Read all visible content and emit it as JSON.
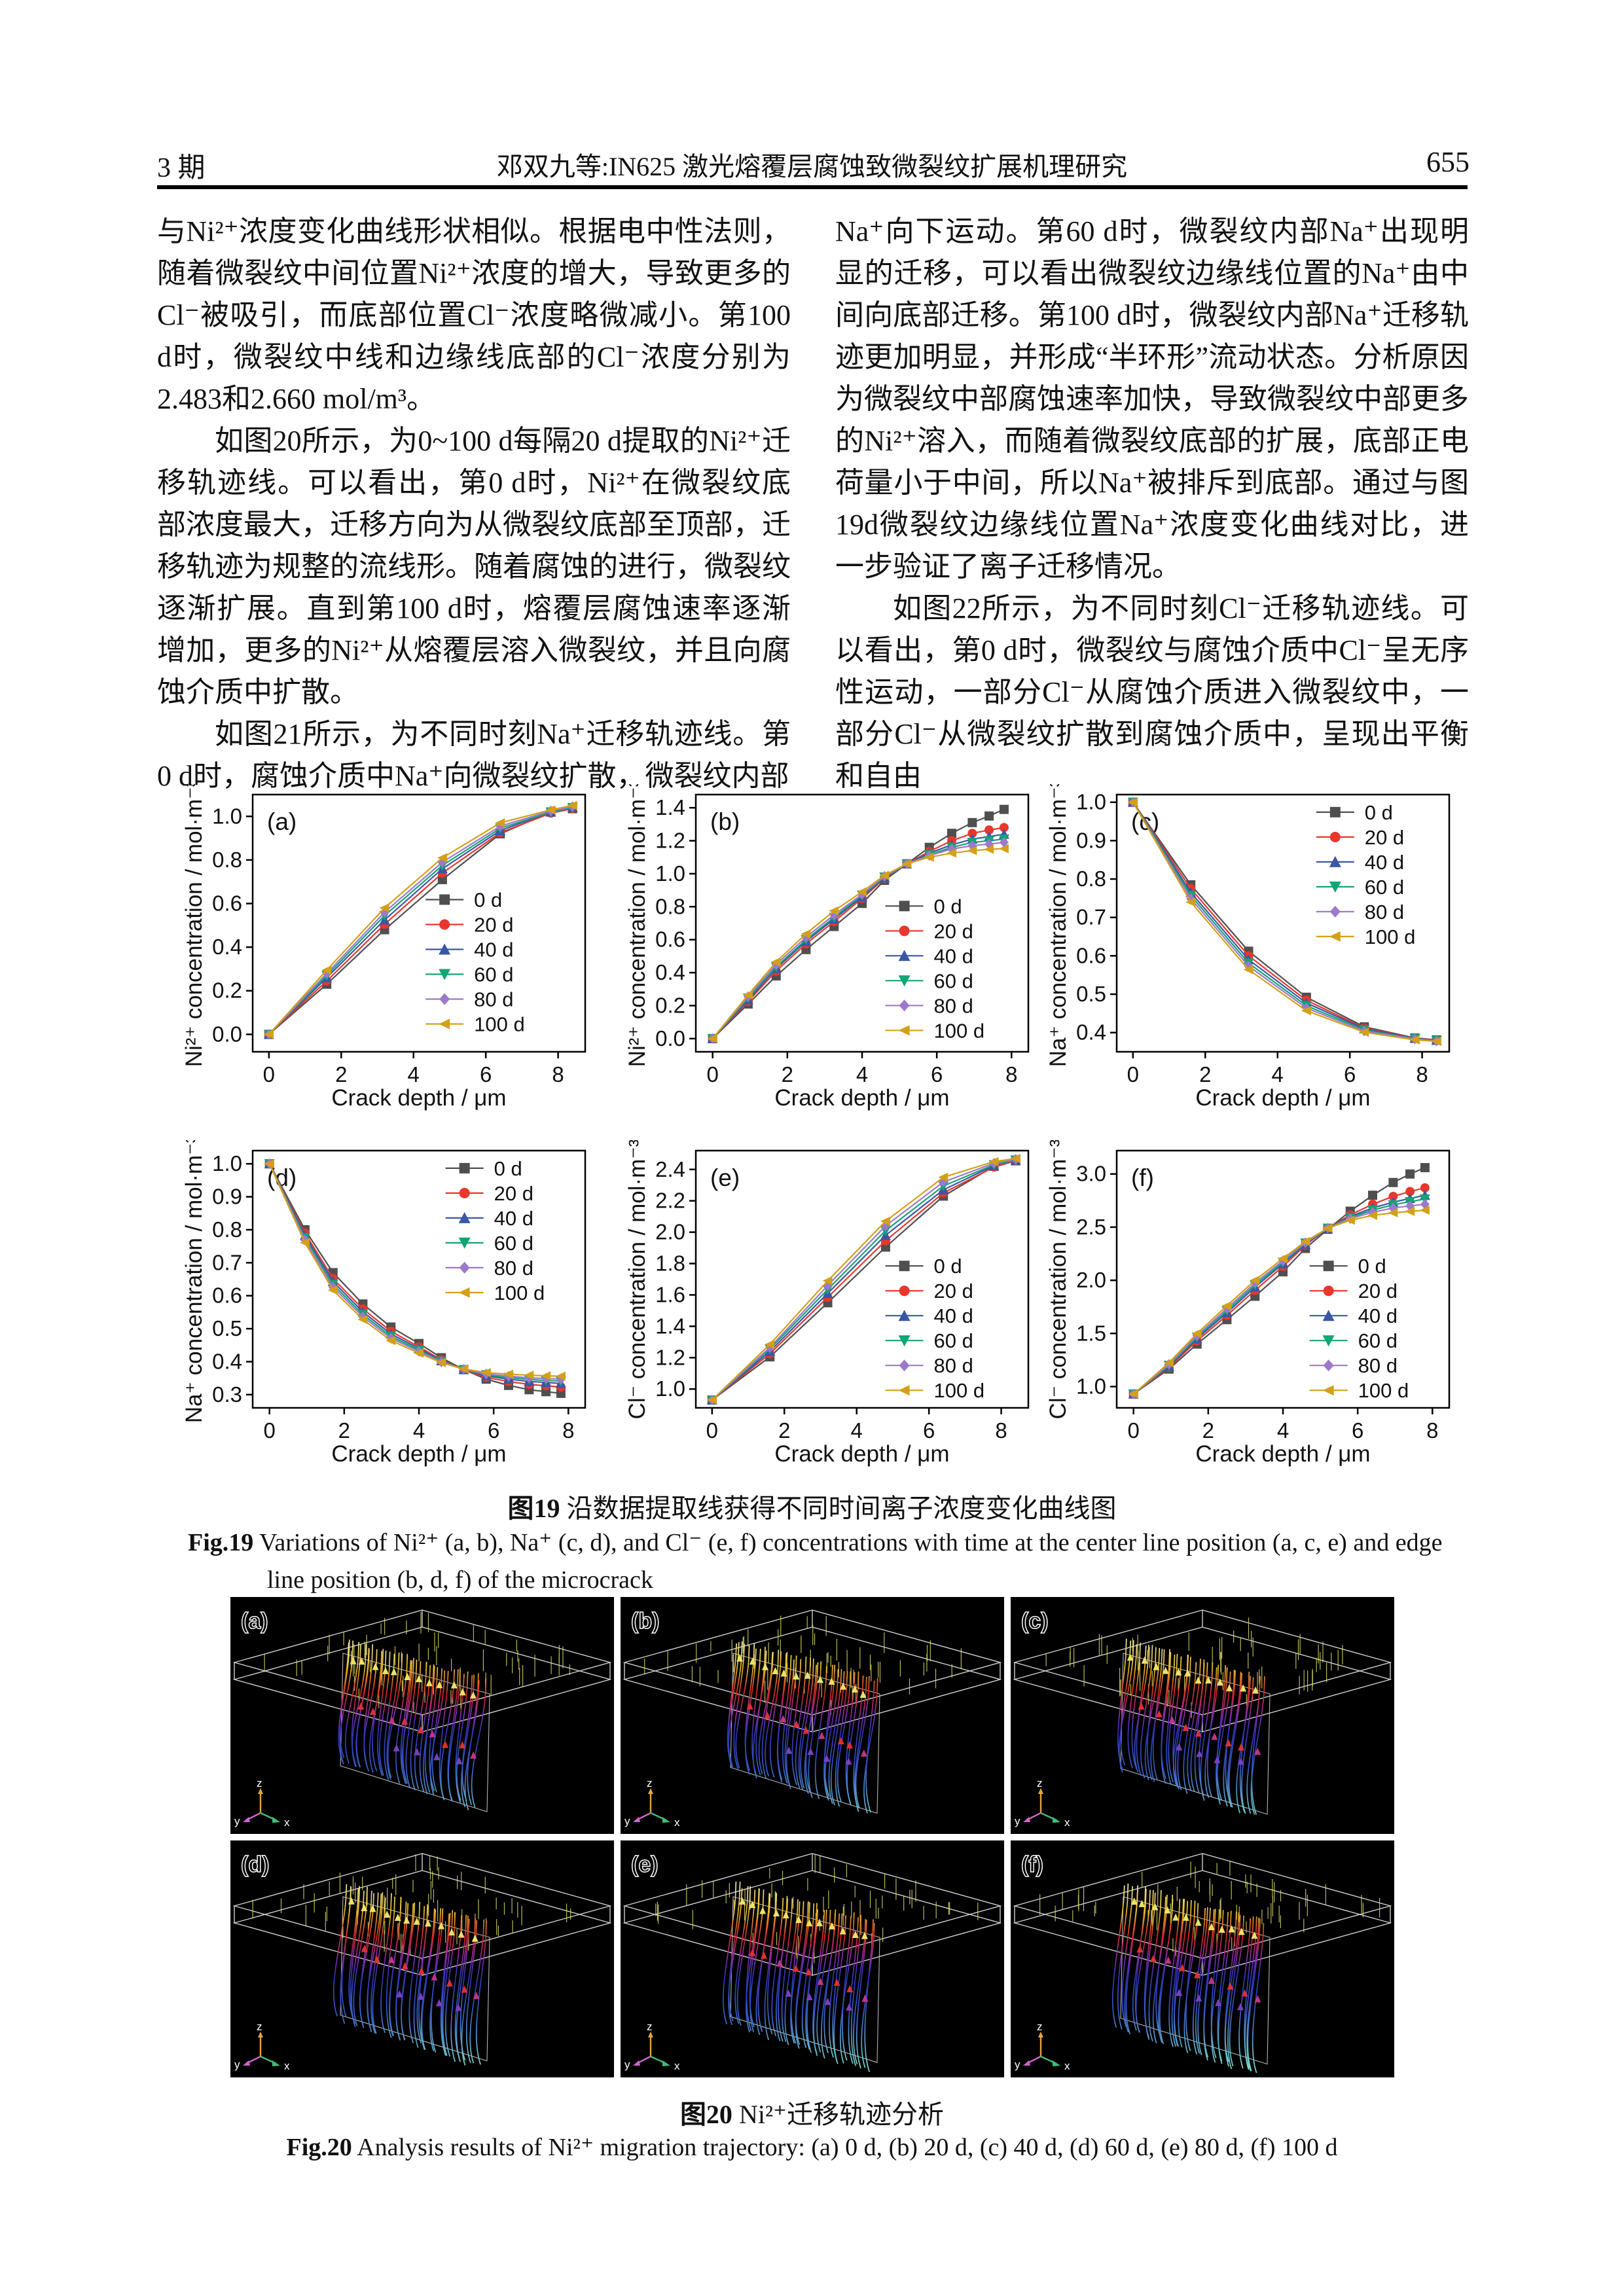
{
  "page": {
    "header": {
      "issue": "3 期",
      "title": "邓双九等:IN625 激光熔覆层腐蚀致微裂纹扩展机理研究",
      "page_number": "655"
    },
    "body": {
      "left_column": [
        {
          "indent": false,
          "text": "与Ni²⁺浓度变化曲线形状相似。根据电中性法则，随着微裂纹中间位置Ni²⁺浓度的增大，导致更多的Cl⁻被吸引，而底部位置Cl⁻浓度略微减小。第100 d时，微裂纹中线和边缘线底部的Cl⁻浓度分别为2.483和2.660 mol/m³。"
        },
        {
          "indent": true,
          "text": "如图20所示，为0~100 d每隔20 d提取的Ni²⁺迁移轨迹线。可以看出，第0 d时，Ni²⁺在微裂纹底部浓度最大，迁移方向为从微裂纹底部至顶部，迁移轨迹为规整的流线形。随着腐蚀的进行，微裂纹逐渐扩展。直到第100 d时，熔覆层腐蚀速率逐渐增加，更多的Ni²⁺从熔覆层溶入微裂纹，并且向腐蚀介质中扩散。"
        },
        {
          "indent": true,
          "text": "如图21所示，为不同时刻Na⁺迁移轨迹线。第0 d时，腐蚀介质中Na⁺向微裂纹扩散，微裂纹内部"
        }
      ],
      "right_column": [
        {
          "indent": false,
          "text": "Na⁺向下运动。第60 d时，微裂纹内部Na⁺出现明显的迁移，可以看出微裂纹边缘线位置的Na⁺由中间向底部迁移。第100 d时，微裂纹内部Na⁺迁移轨迹更加明显，并形成“半环形”流动状态。分析原因为微裂纹中部腐蚀速率加快，导致微裂纹中部更多的Ni²⁺溶入，而随着微裂纹底部的扩展，底部正电荷量小于中间，所以Na⁺被排斥到底部。通过与图19d微裂纹边缘线位置Na⁺浓度变化曲线对比，进一步验证了离子迁移情况。"
        },
        {
          "indent": true,
          "text": "如图22所示，为不同时刻Cl⁻迁移轨迹线。可以看出，第0 d时，微裂纹与腐蚀介质中Cl⁻呈无序性运动，一部分Cl⁻从腐蚀介质进入微裂纹中，一部分Cl⁻从微裂纹扩散到腐蚀介质中，呈现出平衡和自由"
        }
      ]
    },
    "fig19": {
      "caption_zh_prefix": "图19",
      "caption_zh_text": " 沿数据提取线获得不同时间离子浓度变化曲线图",
      "caption_en_prefix": "Fig.19",
      "caption_en_line1": " Variations of Ni²⁺ (a, b), Na⁺ (c, d), and Cl⁻ (e, f) concentrations with time at the center line position (a, c, e) and edge",
      "caption_en_line2": "line position (b, d, f) of the microcrack"
    },
    "fig20": {
      "panel_labels": [
        "(a)",
        "(b)",
        "(c)",
        "(d)",
        "(e)",
        "(f)"
      ],
      "triad_labels": {
        "x": "x",
        "y": "y",
        "z": "z"
      },
      "palette": {
        "background": "#000000",
        "wireframe": "#cfcfcf",
        "plane_ticks": "#d9d964",
        "stream_bottom": "#7fe7d8",
        "stream_blue": "#3a5fd0",
        "stream_purple": "#8c2fb3",
        "stream_red": "#e02828",
        "stream_yellow": "#f5c52e",
        "axis_x": "#44bb77",
        "axis_y": "#cc66cc",
        "axis_z": "#e8a33d"
      },
      "caption_zh_prefix": "图20",
      "caption_zh_text": " Ni²⁺迁移轨迹分析",
      "caption_en_prefix": "Fig.20",
      "caption_en_text": " Analysis results of Ni²⁺ migration trajectory: (a) 0 d, (b) 20 d, (c) 40 d, (d) 60 d, (e) 80 d, (f) 100 d"
    }
  },
  "chart_data": [
    {
      "type": "line",
      "panel": "(a)",
      "xlabel": "Crack depth / μm",
      "ylabel": "Ni²⁺ concentration / mol·m⁻³",
      "xlim": [
        -0.45,
        8.75
      ],
      "ylim": [
        -0.08,
        1.1
      ],
      "xticks": [
        0,
        2,
        4,
        6,
        8
      ],
      "yticks": [
        0.0,
        0.2,
        0.4,
        0.6,
        0.8,
        1.0
      ],
      "ydec": 1,
      "grid": false,
      "legend_pos": {
        "fx": 0.52,
        "fy": 0.36
      },
      "x": [
        0,
        1.6,
        3.2,
        4.8,
        6.4,
        7.8,
        8.4
      ],
      "series": [
        {
          "name": "0 d",
          "color": "#4f4f4f",
          "marker": "square",
          "values": [
            0,
            0.23,
            0.48,
            0.71,
            0.92,
            1.02,
            1.035
          ]
        },
        {
          "name": "20 d",
          "color": "#e8372c",
          "marker": "circle",
          "values": [
            0,
            0.245,
            0.505,
            0.74,
            0.925,
            1.015,
            1.035
          ]
        },
        {
          "name": "40 d",
          "color": "#3a57a7",
          "marker": "triangle-up",
          "values": [
            0,
            0.26,
            0.525,
            0.76,
            0.935,
            1.02,
            1.04
          ]
        },
        {
          "name": "60 d",
          "color": "#15a375",
          "marker": "triangle-down",
          "values": [
            0,
            0.27,
            0.545,
            0.775,
            0.945,
            1.02,
            1.04
          ]
        },
        {
          "name": "80 d",
          "color": "#9d79cb",
          "marker": "diamond",
          "values": [
            0,
            0.28,
            0.56,
            0.79,
            0.955,
            1.025,
            1.045
          ]
        },
        {
          "name": "100 d",
          "color": "#d4a017",
          "marker": "triangle-left",
          "values": [
            0,
            0.295,
            0.58,
            0.81,
            0.97,
            1.03,
            1.05
          ]
        }
      ]
    },
    {
      "type": "line",
      "panel": "(b)",
      "xlabel": "Crack depth / μm",
      "ylabel": "Ni²⁺ concentration / mol·m⁻³",
      "xlim": [
        -0.45,
        8.45
      ],
      "ylim": [
        -0.08,
        1.48
      ],
      "xticks": [
        0,
        2,
        4,
        6,
        8
      ],
      "yticks": [
        0.0,
        0.2,
        0.4,
        0.6,
        0.8,
        1.0,
        1.2,
        1.4
      ],
      "ydec": 1,
      "grid": false,
      "legend_pos": {
        "fx": 0.57,
        "fy": 0.385
      },
      "x": [
        0,
        0.95,
        1.7,
        2.5,
        3.25,
        4.0,
        4.6,
        5.2,
        5.8,
        6.4,
        6.95,
        7.4,
        7.8
      ],
      "series": [
        {
          "name": "0 d",
          "color": "#4f4f4f",
          "marker": "square",
          "values": [
            0,
            0.21,
            0.38,
            0.54,
            0.68,
            0.82,
            0.96,
            1.06,
            1.16,
            1.245,
            1.31,
            1.35,
            1.39
          ]
        },
        {
          "name": "20 d",
          "color": "#e8372c",
          "marker": "circle",
          "values": [
            0,
            0.225,
            0.41,
            0.575,
            0.71,
            0.85,
            0.97,
            1.06,
            1.135,
            1.2,
            1.245,
            1.265,
            1.28
          ]
        },
        {
          "name": "40 d",
          "color": "#3a57a7",
          "marker": "triangle-up",
          "values": [
            0,
            0.235,
            0.425,
            0.59,
            0.725,
            0.86,
            0.975,
            1.06,
            1.125,
            1.175,
            1.21,
            1.225,
            1.24
          ]
        },
        {
          "name": "60 d",
          "color": "#15a375",
          "marker": "triangle-down",
          "values": [
            0,
            0.245,
            0.435,
            0.6,
            0.735,
            0.87,
            0.98,
            1.06,
            1.115,
            1.16,
            1.19,
            1.2,
            1.21
          ]
        },
        {
          "name": "80 d",
          "color": "#9d79cb",
          "marker": "diamond",
          "values": [
            0,
            0.255,
            0.45,
            0.615,
            0.75,
            0.875,
            0.985,
            1.06,
            1.11,
            1.15,
            1.17,
            1.18,
            1.19
          ]
        },
        {
          "name": "100 d",
          "color": "#d4a017",
          "marker": "triangle-left",
          "values": [
            0,
            0.265,
            0.465,
            0.635,
            0.775,
            0.89,
            0.99,
            1.06,
            1.1,
            1.125,
            1.14,
            1.148,
            1.152
          ]
        }
      ]
    },
    {
      "type": "line",
      "panel": "(c)",
      "xlabel": "Crack depth / μm",
      "ylabel": "Na⁺ concentration / mol·m⁻³",
      "xlim": [
        -0.45,
        8.75
      ],
      "ylim": [
        0.35,
        1.02
      ],
      "xticks": [
        0,
        2,
        4,
        6,
        8
      ],
      "yticks": [
        0.4,
        0.5,
        0.6,
        0.7,
        0.8,
        0.9,
        1.0
      ],
      "ydec": 1,
      "grid": false,
      "legend_pos": {
        "fx": 0.6,
        "fy": 0.02
      },
      "x": [
        0,
        1.6,
        3.2,
        4.8,
        6.4,
        7.8,
        8.4
      ],
      "series": [
        {
          "name": "0 d",
          "color": "#4f4f4f",
          "marker": "square",
          "values": [
            1.0,
            0.785,
            0.612,
            0.492,
            0.415,
            0.386,
            0.381
          ]
        },
        {
          "name": "20 d",
          "color": "#e8372c",
          "marker": "circle",
          "values": [
            1.0,
            0.775,
            0.6,
            0.484,
            0.412,
            0.386,
            0.381
          ]
        },
        {
          "name": "40 d",
          "color": "#3a57a7",
          "marker": "triangle-up",
          "values": [
            1.0,
            0.765,
            0.59,
            0.477,
            0.41,
            0.385,
            0.38
          ]
        },
        {
          "name": "60 d",
          "color": "#15a375",
          "marker": "triangle-down",
          "values": [
            1.0,
            0.757,
            0.581,
            0.47,
            0.407,
            0.384,
            0.379
          ]
        },
        {
          "name": "80 d",
          "color": "#9d79cb",
          "marker": "diamond",
          "values": [
            1.0,
            0.749,
            0.573,
            0.464,
            0.404,
            0.383,
            0.378
          ]
        },
        {
          "name": "100 d",
          "color": "#d4a017",
          "marker": "triangle-left",
          "values": [
            1.0,
            0.74,
            0.564,
            0.457,
            0.401,
            0.381,
            0.377
          ]
        }
      ]
    },
    {
      "type": "line",
      "panel": "(d)",
      "xlabel": "Crack depth / μm",
      "ylabel": "Na⁺ concentration / mol·m⁻³",
      "xlim": [
        -0.45,
        8.45
      ],
      "ylim": [
        0.26,
        1.04
      ],
      "xticks": [
        0,
        2,
        4,
        6,
        8
      ],
      "yticks": [
        0.3,
        0.4,
        0.5,
        0.6,
        0.7,
        0.8,
        0.9,
        1.0
      ],
      "ydec": 1,
      "grid": false,
      "legend_pos": {
        "fx": 0.58,
        "fy": 0.02
      },
      "x": [
        0,
        0.95,
        1.7,
        2.5,
        3.25,
        4.0,
        4.6,
        5.2,
        5.8,
        6.4,
        6.95,
        7.4,
        7.8
      ],
      "series": [
        {
          "name": "0 d",
          "color": "#4f4f4f",
          "marker": "square",
          "values": [
            1.0,
            0.8,
            0.67,
            0.575,
            0.505,
            0.455,
            0.412,
            0.376,
            0.347,
            0.328,
            0.315,
            0.309,
            0.304
          ]
        },
        {
          "name": "20 d",
          "color": "#e8372c",
          "marker": "circle",
          "values": [
            1.0,
            0.79,
            0.652,
            0.56,
            0.492,
            0.445,
            0.406,
            0.375,
            0.352,
            0.34,
            0.331,
            0.327,
            0.323
          ]
        },
        {
          "name": "40 d",
          "color": "#3a57a7",
          "marker": "triangle-up",
          "values": [
            1.0,
            0.783,
            0.643,
            0.551,
            0.484,
            0.44,
            0.403,
            0.376,
            0.357,
            0.347,
            0.34,
            0.337,
            0.334
          ]
        },
        {
          "name": "60 d",
          "color": "#15a375",
          "marker": "triangle-down",
          "values": [
            1.0,
            0.776,
            0.634,
            0.543,
            0.477,
            0.435,
            0.401,
            0.376,
            0.36,
            0.352,
            0.346,
            0.343,
            0.341
          ]
        },
        {
          "name": "80 d",
          "color": "#9d79cb",
          "marker": "diamond",
          "values": [
            1.0,
            0.769,
            0.626,
            0.536,
            0.471,
            0.431,
            0.399,
            0.377,
            0.363,
            0.356,
            0.351,
            0.349,
            0.347
          ]
        },
        {
          "name": "100 d",
          "color": "#d4a017",
          "marker": "triangle-left",
          "values": [
            1.0,
            0.761,
            0.617,
            0.528,
            0.464,
            0.426,
            0.397,
            0.378,
            0.367,
            0.362,
            0.359,
            0.357,
            0.356
          ]
        }
      ]
    },
    {
      "type": "line",
      "panel": "(e)",
      "xlabel": "Crack depth / μm",
      "ylabel": "Cl⁻ concentration / mol·m⁻³",
      "xlim": [
        -0.45,
        8.75
      ],
      "ylim": [
        0.88,
        2.52
      ],
      "xticks": [
        0,
        2,
        4,
        6,
        8
      ],
      "yticks": [
        1.0,
        1.2,
        1.4,
        1.6,
        1.8,
        2.0,
        2.2,
        2.4
      ],
      "ydec": 1,
      "grid": false,
      "legend_pos": {
        "fx": 0.57,
        "fy": 0.4
      },
      "x": [
        0,
        1.6,
        3.2,
        4.8,
        6.4,
        7.8,
        8.4
      ],
      "series": [
        {
          "name": "0 d",
          "color": "#4f4f4f",
          "marker": "square",
          "values": [
            0.93,
            1.205,
            1.55,
            1.905,
            2.23,
            2.42,
            2.455
          ]
        },
        {
          "name": "20 d",
          "color": "#e8372c",
          "marker": "circle",
          "values": [
            0.93,
            1.225,
            1.585,
            1.945,
            2.25,
            2.415,
            2.455
          ]
        },
        {
          "name": "40 d",
          "color": "#3a57a7",
          "marker": "triangle-up",
          "values": [
            0.93,
            1.24,
            1.61,
            1.98,
            2.27,
            2.425,
            2.46
          ]
        },
        {
          "name": "60 d",
          "color": "#15a375",
          "marker": "triangle-down",
          "values": [
            0.93,
            1.255,
            1.635,
            2.01,
            2.295,
            2.43,
            2.46
          ]
        },
        {
          "name": "80 d",
          "color": "#9d79cb",
          "marker": "diamond",
          "values": [
            0.93,
            1.265,
            1.66,
            2.04,
            2.32,
            2.44,
            2.465
          ]
        },
        {
          "name": "100 d",
          "color": "#d4a017",
          "marker": "triangle-left",
          "values": [
            0.93,
            1.285,
            1.69,
            2.07,
            2.35,
            2.45,
            2.47
          ]
        }
      ]
    },
    {
      "type": "line",
      "panel": "(f)",
      "xlabel": "Crack depth / μm",
      "ylabel": "Cl⁻ concentration / mol·m⁻³",
      "xlim": [
        -0.45,
        8.45
      ],
      "ylim": [
        0.8,
        3.22
      ],
      "xticks": [
        0,
        2,
        4,
        6,
        8
      ],
      "yticks": [
        1.0,
        1.5,
        2.0,
        2.5,
        3.0
      ],
      "ydec": 1,
      "grid": false,
      "legend_pos": {
        "fx": 0.58,
        "fy": 0.4
      },
      "x": [
        0,
        0.95,
        1.7,
        2.5,
        3.25,
        4.0,
        4.6,
        5.2,
        5.8,
        6.4,
        6.95,
        7.4,
        7.8
      ],
      "series": [
        {
          "name": "0 d",
          "color": "#4f4f4f",
          "marker": "square",
          "values": [
            0.93,
            1.165,
            1.4,
            1.63,
            1.85,
            2.08,
            2.3,
            2.48,
            2.65,
            2.8,
            2.92,
            3.0,
            3.06
          ]
        },
        {
          "name": "20 d",
          "color": "#e8372c",
          "marker": "circle",
          "values": [
            0.93,
            1.18,
            1.43,
            1.67,
            1.905,
            2.13,
            2.33,
            2.49,
            2.615,
            2.715,
            2.79,
            2.835,
            2.87
          ]
        },
        {
          "name": "40 d",
          "color": "#3a57a7",
          "marker": "triangle-up",
          "values": [
            0.93,
            1.19,
            1.45,
            1.695,
            1.935,
            2.155,
            2.34,
            2.49,
            2.6,
            2.68,
            2.735,
            2.77,
            2.8
          ]
        },
        {
          "name": "60 d",
          "color": "#15a375",
          "marker": "triangle-down",
          "values": [
            0.93,
            1.2,
            1.465,
            1.715,
            1.955,
            2.17,
            2.35,
            2.49,
            2.59,
            2.66,
            2.71,
            2.74,
            2.765
          ]
        },
        {
          "name": "80 d",
          "color": "#9d79cb",
          "marker": "diamond",
          "values": [
            0.93,
            1.21,
            1.48,
            1.735,
            1.975,
            2.185,
            2.355,
            2.49,
            2.58,
            2.64,
            2.68,
            2.7,
            2.715
          ]
        },
        {
          "name": "100 d",
          "color": "#d4a017",
          "marker": "triangle-left",
          "values": [
            0.93,
            1.225,
            1.5,
            1.76,
            2.0,
            2.205,
            2.365,
            2.49,
            2.565,
            2.61,
            2.635,
            2.648,
            2.66
          ]
        }
      ]
    }
  ]
}
